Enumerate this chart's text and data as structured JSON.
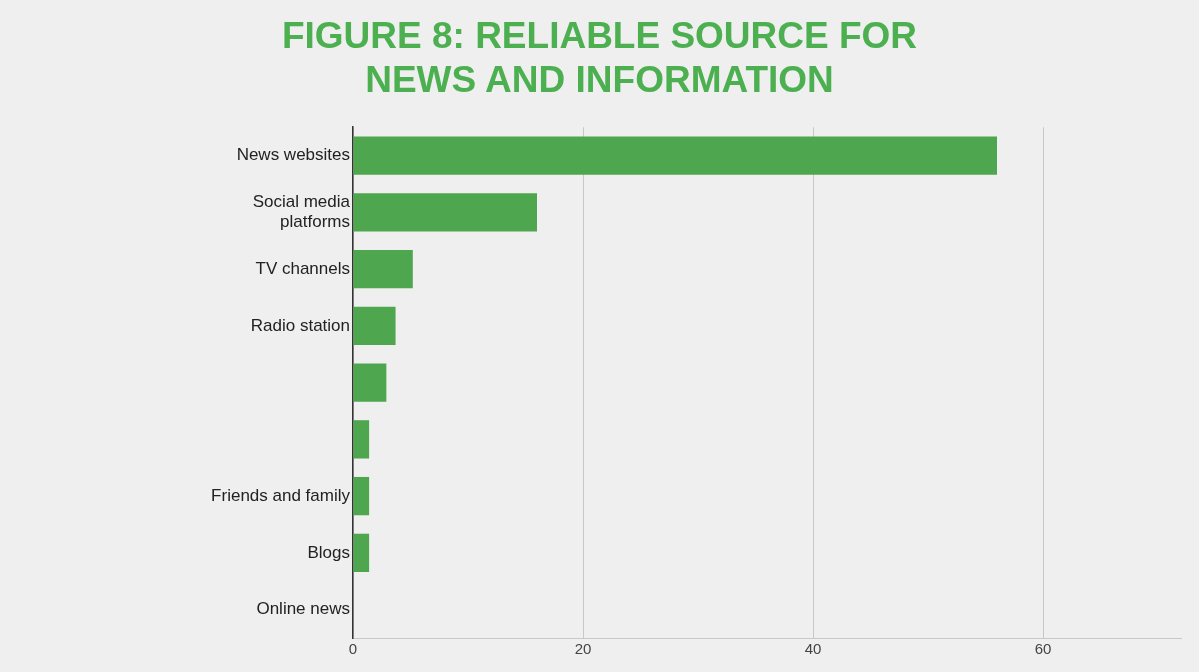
{
  "chart_data": {
    "type": "bar",
    "orientation": "horizontal",
    "title": "FIGURE 8: RELIABLE SOURCE FOR NEWS AND INFORMATION",
    "categories": [
      "News websites",
      "Social media platforms",
      "TV channels",
      "Radio station",
      null,
      null,
      "Friends and family",
      "Blogs",
      "Online news"
    ],
    "values": [
      56,
      16,
      5.2,
      3.7,
      2.9,
      1.4,
      1.4,
      1.4,
      0
    ],
    "color": "#4ea64e",
    "xlim": [
      0,
      72
    ],
    "xticks": [
      0,
      20,
      40,
      60
    ],
    "grid": "x",
    "legend": false
  }
}
